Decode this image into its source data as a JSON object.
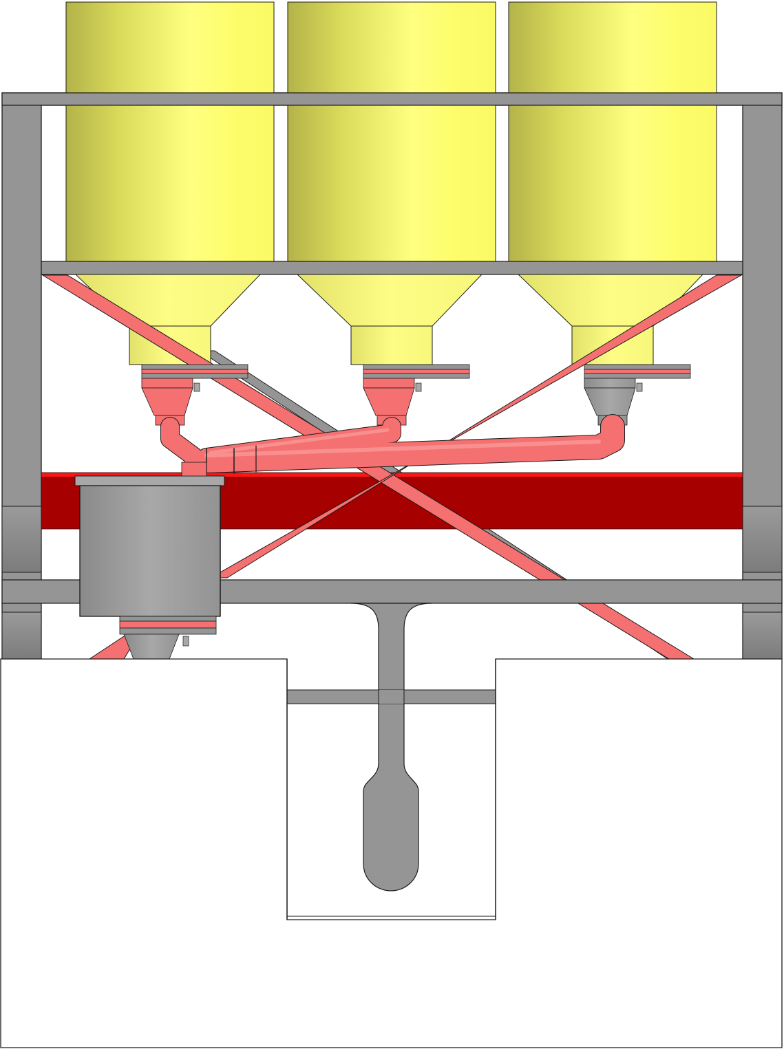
{
  "colors": {
    "frame_gray": "#959595",
    "frame_edge": "#1a1a1a",
    "silo_yellow": "#fdfd6e",
    "silo_yellow_dark": "#a9a940",
    "pipe_salmon": "#f57070",
    "pipe_salmon_dark": "#c24848",
    "beam_red": "#a60000",
    "beam_red_top": "#ff1010",
    "background": "#ffffff"
  },
  "silos": [
    {
      "name": "silo-left",
      "hopper_color": "salmon"
    },
    {
      "name": "silo-center",
      "hopper_color": "salmon"
    },
    {
      "name": "silo-right",
      "hopper_color": "gray"
    }
  ]
}
